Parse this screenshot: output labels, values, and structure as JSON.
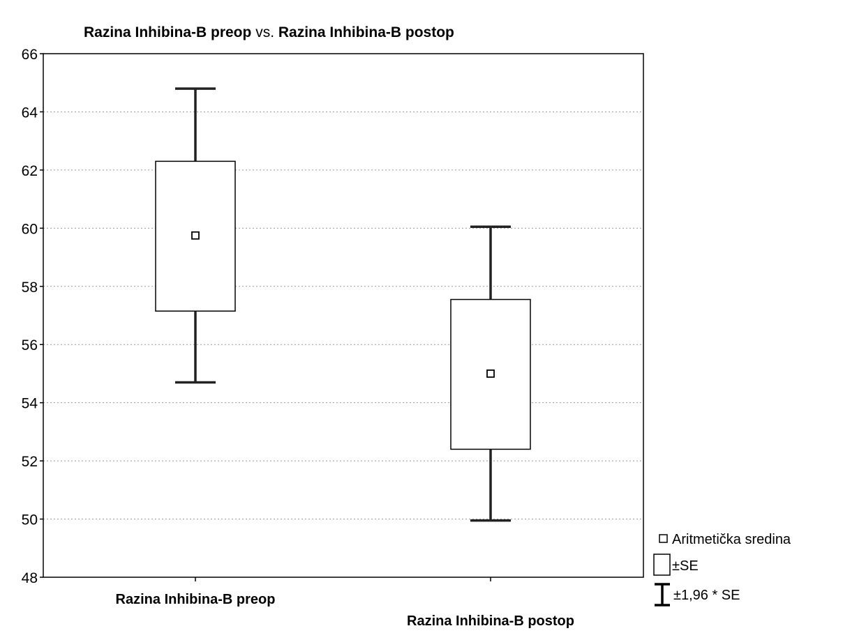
{
  "chart_data": {
    "type": "box",
    "title": {
      "part1": "Razina Inhibina-B preop",
      "connector": "vs.",
      "part2": "Razina Inhibina-B postop"
    },
    "xlabel": "",
    "ylabel": "",
    "ylim": [
      48,
      66
    ],
    "yticks": [
      "48",
      "50",
      "52",
      "54",
      "56",
      "58",
      "60",
      "62",
      "64",
      "66"
    ],
    "grid": true,
    "legend_position": "bottom-right",
    "categories": [
      "Razina Inhibina-B preop",
      "Razina Inhibina-B postop"
    ],
    "series": [
      {
        "category": "Razina Inhibina-B preop",
        "mean": 59.75,
        "se_low": 57.15,
        "se_high": 62.3,
        "ci_low": 54.7,
        "ci_high": 64.8
      },
      {
        "category": "Razina Inhibina-B postop",
        "mean": 55.0,
        "se_low": 52.4,
        "se_high": 57.55,
        "ci_low": 49.95,
        "ci_high": 60.05
      }
    ],
    "legend": {
      "mean": "Aritmetička sredina",
      "se": "±SE",
      "ci": "±1,96 * SE"
    }
  }
}
